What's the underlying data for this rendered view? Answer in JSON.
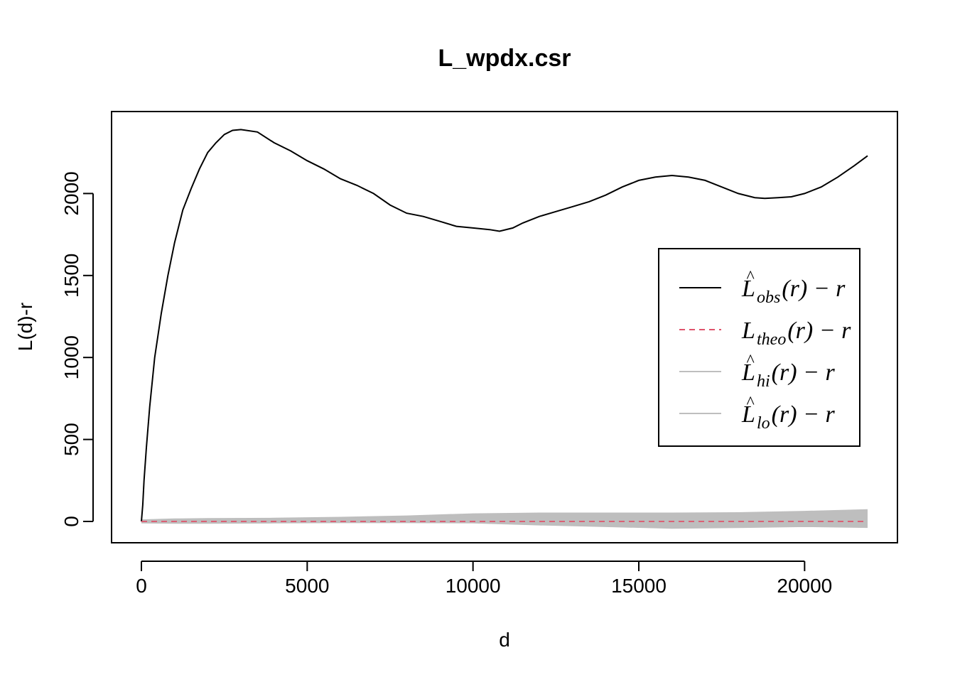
{
  "chart_data": {
    "type": "line",
    "title": "L_wpdx.csr",
    "xlabel": "d",
    "ylabel": "L(d)-r",
    "xlim": [
      -900,
      22800
    ],
    "ylim": [
      -130,
      2500
    ],
    "xticks": [
      0,
      5000,
      10000,
      15000,
      20000
    ],
    "yticks": [
      0,
      500,
      1000,
      1500,
      2000
    ],
    "xtick_labels": [
      "0",
      "5000",
      "10000",
      "15000",
      "20000"
    ],
    "ytick_labels": [
      "0",
      "500",
      "1000",
      "1500",
      "2000"
    ],
    "grid": false,
    "legend_position": "right",
    "series": [
      {
        "name": "obs",
        "color": "#000000",
        "style": "solid",
        "x": [
          0,
          40,
          80,
          150,
          250,
          400,
          600,
          800,
          1000,
          1250,
          1500,
          1750,
          2000,
          2250,
          2500,
          2750,
          3000,
          3500,
          4000,
          4500,
          5000,
          5500,
          6000,
          6500,
          7000,
          7500,
          8000,
          8500,
          9000,
          9500,
          10000,
          10500,
          10800,
          11200,
          11500,
          12000,
          12500,
          13000,
          13500,
          14000,
          14500,
          15000,
          15500,
          16000,
          16500,
          17000,
          17500,
          18000,
          18500,
          18800,
          19200,
          19600,
          20000,
          20500,
          21000,
          21500,
          21900
        ],
        "y": [
          0,
          100,
          250,
          450,
          700,
          1000,
          1270,
          1500,
          1700,
          1900,
          2030,
          2150,
          2250,
          2310,
          2360,
          2385,
          2390,
          2375,
          2310,
          2260,
          2200,
          2150,
          2090,
          2050,
          2000,
          1930,
          1880,
          1860,
          1830,
          1800,
          1790,
          1780,
          1770,
          1790,
          1820,
          1860,
          1890,
          1920,
          1950,
          1990,
          2040,
          2080,
          2100,
          2110,
          2100,
          2080,
          2040,
          2000,
          1975,
          1970,
          1975,
          1980,
          2000,
          2040,
          2100,
          2170,
          2230
        ]
      },
      {
        "name": "theo",
        "color": "#DF536B",
        "style": "dashed",
        "x": [
          0,
          21900
        ],
        "y": [
          0,
          0
        ]
      },
      {
        "name": "hi",
        "color": "#BEBEBE",
        "style": "solid",
        "x": [
          0,
          1000,
          2000,
          4000,
          6000,
          8000,
          10000,
          12000,
          14000,
          16000,
          18000,
          20000,
          21900
        ],
        "y": [
          8,
          14,
          16,
          18,
          24,
          32,
          45,
          50,
          50,
          50,
          52,
          60,
          70
        ]
      },
      {
        "name": "lo",
        "color": "#BEBEBE",
        "style": "solid",
        "x": [
          0,
          1000,
          2000,
          4000,
          6000,
          8000,
          10000,
          12000,
          14000,
          16000,
          18000,
          20000,
          21900
        ],
        "y": [
          -8,
          -10,
          -10,
          -8,
          -6,
          -6,
          -8,
          -20,
          -30,
          -40,
          -36,
          -30,
          -35
        ]
      }
    ],
    "legend": [
      {
        "base": "L",
        "hat": true,
        "sub": "obs",
        "tail": "(r) − r",
        "color": "#000000",
        "style": "solid"
      },
      {
        "base": "L",
        "hat": false,
        "sub": "theo",
        "tail": "(r) − r",
        "color": "#DF536B",
        "style": "dashed"
      },
      {
        "base": "L",
        "hat": true,
        "sub": "hi",
        "tail": "(r) − r",
        "color": "#BEBEBE",
        "style": "solid"
      },
      {
        "base": "L",
        "hat": true,
        "sub": "lo",
        "tail": "(r) − r",
        "color": "#BEBEBE",
        "style": "solid"
      }
    ]
  }
}
